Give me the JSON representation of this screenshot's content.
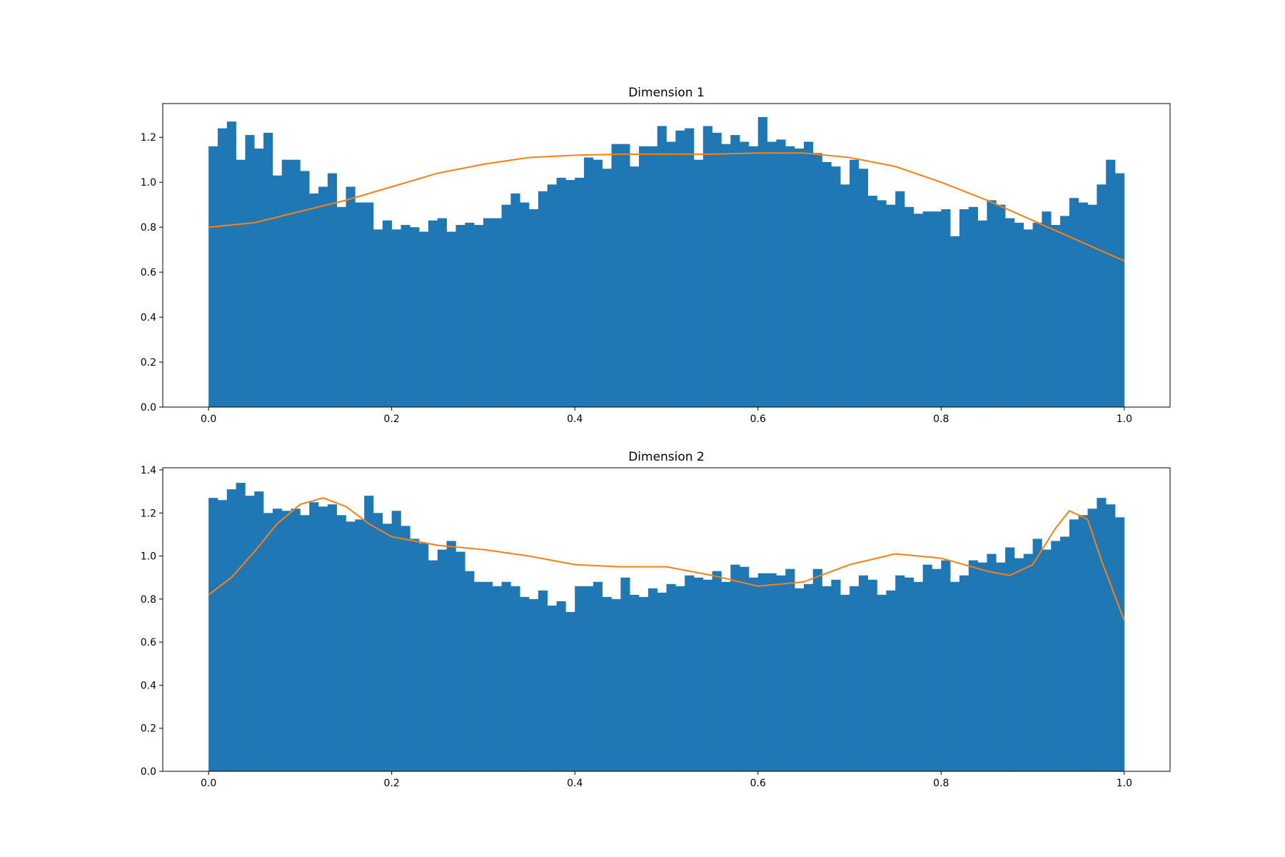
{
  "chart_data": [
    {
      "type": "histogram",
      "title": "Dimension 1",
      "color": "#1f77b4",
      "bins": [
        0,
        0.01,
        0.02,
        0.03,
        0.04,
        0.05,
        0.06,
        0.07,
        0.08,
        0.09,
        0.1,
        0.11,
        0.12,
        0.13,
        0.14,
        0.15,
        0.16,
        0.17,
        0.18,
        0.19,
        0.2,
        0.21,
        0.22,
        0.23,
        0.24,
        0.25,
        0.26,
        0.27,
        0.28,
        0.29,
        0.3,
        0.31,
        0.32,
        0.33,
        0.34,
        0.35,
        0.36,
        0.37,
        0.38,
        0.39,
        0.4,
        0.41,
        0.42,
        0.43,
        0.44,
        0.45,
        0.46,
        0.47,
        0.48,
        0.49,
        0.5,
        0.51,
        0.52,
        0.53,
        0.54,
        0.55,
        0.56,
        0.57,
        0.58,
        0.59,
        0.6,
        0.61,
        0.62,
        0.63,
        0.64,
        0.65,
        0.66,
        0.67,
        0.68,
        0.69,
        0.7,
        0.71,
        0.72,
        0.73,
        0.74,
        0.75,
        0.76,
        0.77,
        0.78,
        0.79,
        0.8,
        0.81,
        0.82,
        0.83,
        0.84,
        0.85,
        0.86,
        0.87,
        0.88,
        0.89,
        0.9,
        0.91,
        0.92,
        0.93,
        0.94,
        0.95,
        0.96,
        0.97,
        0.98,
        0.99,
        1
      ],
      "values": [
        1.16,
        1.24,
        1.27,
        1.1,
        1.21,
        1.15,
        1.22,
        1.03,
        1.1,
        1.1,
        1.05,
        0.95,
        0.98,
        1.04,
        0.89,
        0.98,
        0.91,
        0.91,
        0.79,
        0.83,
        0.79,
        0.81,
        0.8,
        0.78,
        0.83,
        0.84,
        0.78,
        0.81,
        0.82,
        0.81,
        0.84,
        0.84,
        0.9,
        0.95,
        0.91,
        0.88,
        0.96,
        0.99,
        1.02,
        1.01,
        1.02,
        1.11,
        1.1,
        1.06,
        1.17,
        1.17,
        1.07,
        1.16,
        1.16,
        1.25,
        1.18,
        1.23,
        1.24,
        1.1,
        1.25,
        1.22,
        1.17,
        1.21,
        1.18,
        1.16,
        1.29,
        1.18,
        1.19,
        1.16,
        1.15,
        1.18,
        1.13,
        1.09,
        1.07,
        0.99,
        1.1,
        1.06,
        0.94,
        0.92,
        0.9,
        0.96,
        0.89,
        0.86,
        0.87,
        0.87,
        0.88,
        0.76,
        0.88,
        0.89,
        0.83,
        0.92,
        0.9,
        0.84,
        0.82,
        0.79,
        0.82,
        0.87,
        0.81,
        0.85,
        0.93,
        0.91,
        0.9,
        0.99,
        1.1,
        1.04
      ],
      "line": {
        "color": "#ff7f0e",
        "x": [
          0,
          0.05,
          0.1,
          0.15,
          0.2,
          0.25,
          0.3,
          0.35,
          0.4,
          0.45,
          0.5,
          0.55,
          0.6,
          0.65,
          0.7,
          0.75,
          0.8,
          0.85,
          0.9,
          0.95,
          1
        ],
        "values": [
          0.8,
          0.82,
          0.87,
          0.92,
          0.98,
          1.04,
          1.08,
          1.11,
          1.12,
          1.125,
          1.125,
          1.125,
          1.13,
          1.13,
          1.11,
          1.07,
          1.0,
          0.92,
          0.83,
          0.74,
          0.65
        ]
      },
      "xlim": [
        -0.05,
        1.05
      ],
      "ylim": [
        0,
        1.35
      ],
      "xticks": [
        {
          "value": 0,
          "label": "0.0"
        },
        0.2,
        0.4,
        0.6,
        0.8,
        {
          "value": 1,
          "label": "1.0"
        }
      ],
      "yticks": [
        {
          "value": 0,
          "label": "0.0"
        },
        0.2,
        0.4,
        0.6,
        0.8,
        {
          "value": 1,
          "label": "1.0"
        },
        1.2
      ]
    },
    {
      "type": "histogram",
      "title": "Dimension 2",
      "color": "#1f77b4",
      "bins": [
        0,
        0.01,
        0.02,
        0.03,
        0.04,
        0.05,
        0.06,
        0.07,
        0.08,
        0.09,
        0.1,
        0.11,
        0.12,
        0.13,
        0.14,
        0.15,
        0.16,
        0.17,
        0.18,
        0.19,
        0.2,
        0.21,
        0.22,
        0.23,
        0.24,
        0.25,
        0.26,
        0.27,
        0.28,
        0.29,
        0.3,
        0.31,
        0.32,
        0.33,
        0.34,
        0.35,
        0.36,
        0.37,
        0.38,
        0.39,
        0.4,
        0.41,
        0.42,
        0.43,
        0.44,
        0.45,
        0.46,
        0.47,
        0.48,
        0.49,
        0.5,
        0.51,
        0.52,
        0.53,
        0.54,
        0.55,
        0.56,
        0.57,
        0.58,
        0.59,
        0.6,
        0.61,
        0.62,
        0.63,
        0.64,
        0.65,
        0.66,
        0.67,
        0.68,
        0.69,
        0.7,
        0.71,
        0.72,
        0.73,
        0.74,
        0.75,
        0.76,
        0.77,
        0.78,
        0.79,
        0.8,
        0.81,
        0.82,
        0.83,
        0.84,
        0.85,
        0.86,
        0.87,
        0.88,
        0.89,
        0.9,
        0.91,
        0.92,
        0.93,
        0.94,
        0.95,
        0.96,
        0.97,
        0.98,
        0.99,
        1
      ],
      "values": [
        1.27,
        1.26,
        1.31,
        1.34,
        1.28,
        1.3,
        1.2,
        1.22,
        1.21,
        1.22,
        1.19,
        1.25,
        1.23,
        1.24,
        1.19,
        1.16,
        1.17,
        1.28,
        1.2,
        1.15,
        1.21,
        1.14,
        1.08,
        1.06,
        0.98,
        1.03,
        1.07,
        1.02,
        0.93,
        0.88,
        0.88,
        0.86,
        0.88,
        0.86,
        0.81,
        0.8,
        0.84,
        0.77,
        0.79,
        0.74,
        0.86,
        0.86,
        0.88,
        0.81,
        0.8,
        0.9,
        0.82,
        0.81,
        0.85,
        0.83,
        0.87,
        0.86,
        0.91,
        0.9,
        0.89,
        0.93,
        0.88,
        0.96,
        0.95,
        0.9,
        0.92,
        0.92,
        0.91,
        0.94,
        0.85,
        0.87,
        0.94,
        0.86,
        0.89,
        0.82,
        0.86,
        0.91,
        0.89,
        0.82,
        0.84,
        0.91,
        0.9,
        0.88,
        0.96,
        0.94,
        0.98,
        0.88,
        0.91,
        0.98,
        0.97,
        1.01,
        0.97,
        1.04,
        0.99,
        1.01,
        1.08,
        1.03,
        1.07,
        1.09,
        1.17,
        1.19,
        1.22,
        1.27,
        1.24,
        1.18
      ],
      "line": {
        "color": "#ff7f0e",
        "x": [
          0,
          0.025,
          0.05,
          0.075,
          0.1,
          0.125,
          0.15,
          0.175,
          0.2,
          0.25,
          0.3,
          0.35,
          0.4,
          0.45,
          0.5,
          0.55,
          0.6,
          0.65,
          0.7,
          0.75,
          0.8,
          0.85,
          0.875,
          0.9,
          0.925,
          0.94,
          0.96,
          0.975,
          1
        ],
        "values": [
          0.82,
          0.9,
          1.02,
          1.15,
          1.24,
          1.27,
          1.23,
          1.15,
          1.09,
          1.05,
          1.03,
          1.0,
          0.96,
          0.95,
          0.95,
          0.91,
          0.86,
          0.88,
          0.96,
          1.01,
          0.99,
          0.93,
          0.91,
          0.96,
          1.13,
          1.21,
          1.17,
          0.98,
          0.7
        ]
      },
      "xlim": [
        -0.05,
        1.05
      ],
      "ylim": [
        0,
        1.41
      ],
      "xticks": [
        {
          "value": 0,
          "label": "0.0"
        },
        0.2,
        0.4,
        0.6,
        0.8,
        {
          "value": 1,
          "label": "1.0"
        }
      ],
      "yticks": [
        {
          "value": 0,
          "label": "0.0"
        },
        0.2,
        0.4,
        0.6,
        0.8,
        {
          "value": 1,
          "label": "1.0"
        },
        1.2,
        1.4
      ]
    }
  ]
}
